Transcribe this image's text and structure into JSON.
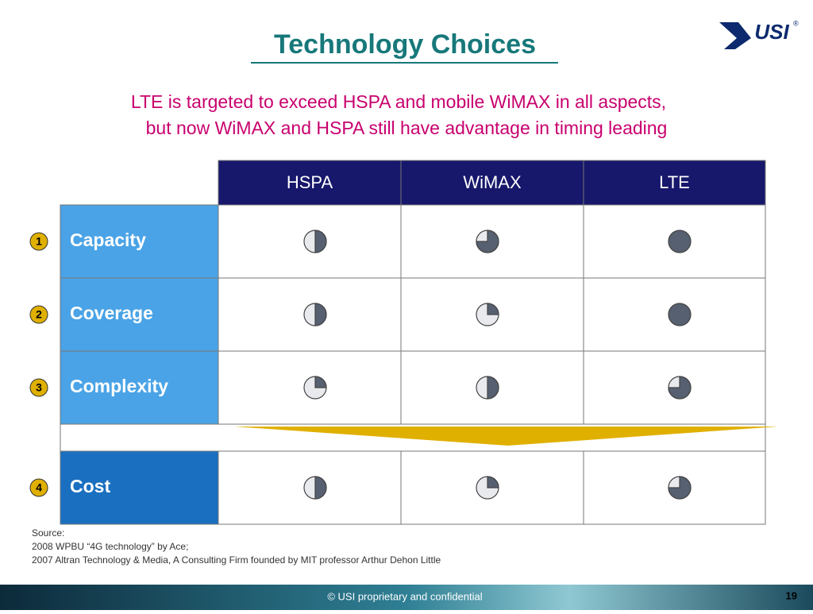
{
  "slide": {
    "title": "Technology Choices",
    "subtitle_lines": [
      "LTE is targeted to exceed HSPA and mobile WiMAX in all aspects,",
      "but now WiMAX and HSPA still have advantage in timing leading"
    ]
  },
  "logo": {
    "text": "USI",
    "mark": "®"
  },
  "table": {
    "columns": [
      "HSPA",
      "WiMAX",
      "LTE"
    ],
    "rows": [
      {
        "number": "1",
        "label": "Capacity",
        "balls": [
          2,
          3,
          4
        ]
      },
      {
        "number": "2",
        "label": "Coverage",
        "balls": [
          2,
          1,
          4
        ]
      },
      {
        "number": "3",
        "label": "Complexity",
        "balls": [
          1,
          2,
          3
        ]
      },
      {
        "number": "4",
        "label": "Cost",
        "balls": [
          2,
          1,
          3
        ]
      }
    ]
  },
  "source": {
    "lines": [
      "Source:",
      "2008 WPBU “4G technology” by Ace;",
      "2007 Altran Technology & Media, A Consulting Firm founded by MIT professor Arthur Dehon Little"
    ]
  },
  "footer": {
    "text": "© USI proprietary and confidential",
    "page": "19"
  }
}
